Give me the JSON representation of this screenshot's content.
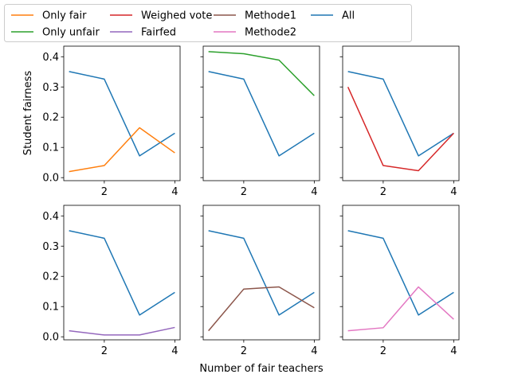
{
  "figure": {
    "ylabel": "Student fairness",
    "xlabel": "Number of fair teachers"
  },
  "legend": {
    "placement": "top-left, above plots",
    "entries": [
      {
        "name": "Only fair",
        "color": "#ff7f0e"
      },
      {
        "name": "Only unfair",
        "color": "#2ca02c"
      },
      {
        "name": "Weighed vote",
        "color": "#d62728"
      },
      {
        "name": "Fairfed",
        "color": "#9467bd"
      },
      {
        "name": "Methode1",
        "color": "#8c564b"
      },
      {
        "name": "Methode2",
        "color": "#e377c2"
      },
      {
        "name": "All",
        "color": "#1f77b4"
      }
    ]
  },
  "chart_data": [
    {
      "type": "line",
      "panel": "row1-col1",
      "x": [
        1,
        2,
        3,
        4
      ],
      "xticks": [
        2,
        4
      ],
      "yticks": [
        0.0,
        0.1,
        0.2,
        0.3,
        0.4
      ],
      "ylim": [
        -0.01,
        0.435
      ],
      "series": [
        {
          "name": "All",
          "color": "#1f77b4",
          "values": [
            0.351,
            0.326,
            0.072,
            0.147
          ]
        },
        {
          "name": "Only fair",
          "color": "#ff7f0e",
          "values": [
            0.02,
            0.04,
            0.165,
            0.082
          ]
        }
      ]
    },
    {
      "type": "line",
      "panel": "row1-col2",
      "x": [
        1,
        2,
        3,
        4
      ],
      "xticks": [
        2,
        4
      ],
      "yticks": [
        0.0,
        0.1,
        0.2,
        0.3,
        0.4
      ],
      "ylim": [
        -0.01,
        0.435
      ],
      "series": [
        {
          "name": "All",
          "color": "#1f77b4",
          "values": [
            0.351,
            0.326,
            0.072,
            0.147
          ]
        },
        {
          "name": "Only unfair",
          "color": "#2ca02c",
          "values": [
            0.417,
            0.41,
            0.389,
            0.271
          ]
        }
      ]
    },
    {
      "type": "line",
      "panel": "row1-col3",
      "x": [
        1,
        2,
        3,
        4
      ],
      "xticks": [
        2,
        4
      ],
      "yticks": [
        0.0,
        0.1,
        0.2,
        0.3,
        0.4
      ],
      "ylim": [
        -0.01,
        0.435
      ],
      "series": [
        {
          "name": "All",
          "color": "#1f77b4",
          "values": [
            0.351,
            0.326,
            0.072,
            0.147
          ]
        },
        {
          "name": "Weighed vote",
          "color": "#d62728",
          "values": [
            0.3,
            0.04,
            0.023,
            0.147
          ]
        }
      ]
    },
    {
      "type": "line",
      "panel": "row2-col1",
      "x": [
        1,
        2,
        3,
        4
      ],
      "xticks": [
        2,
        4
      ],
      "yticks": [
        0.0,
        0.1,
        0.2,
        0.3,
        0.4
      ],
      "ylim": [
        -0.01,
        0.435
      ],
      "series": [
        {
          "name": "All",
          "color": "#1f77b4",
          "values": [
            0.351,
            0.326,
            0.072,
            0.147
          ]
        },
        {
          "name": "Fairfed",
          "color": "#9467bd",
          "values": [
            0.02,
            0.006,
            0.006,
            0.031
          ]
        }
      ]
    },
    {
      "type": "line",
      "panel": "row2-col2",
      "x": [
        1,
        2,
        3,
        4
      ],
      "xticks": [
        2,
        4
      ],
      "yticks": [
        0.0,
        0.1,
        0.2,
        0.3,
        0.4
      ],
      "ylim": [
        -0.01,
        0.435
      ],
      "series": [
        {
          "name": "All",
          "color": "#1f77b4",
          "values": [
            0.351,
            0.326,
            0.072,
            0.147
          ]
        },
        {
          "name": "Methode1",
          "color": "#8c564b",
          "values": [
            0.02,
            0.158,
            0.165,
            0.096
          ]
        }
      ]
    },
    {
      "type": "line",
      "panel": "row2-col3",
      "x": [
        1,
        2,
        3,
        4
      ],
      "xticks": [
        2,
        4
      ],
      "yticks": [
        0.0,
        0.1,
        0.2,
        0.3,
        0.4
      ],
      "ylim": [
        -0.01,
        0.435
      ],
      "series": [
        {
          "name": "All",
          "color": "#1f77b4",
          "values": [
            0.351,
            0.326,
            0.072,
            0.147
          ]
        },
        {
          "name": "Methode2",
          "color": "#e377c2",
          "values": [
            0.02,
            0.03,
            0.165,
            0.058
          ]
        }
      ]
    }
  ]
}
